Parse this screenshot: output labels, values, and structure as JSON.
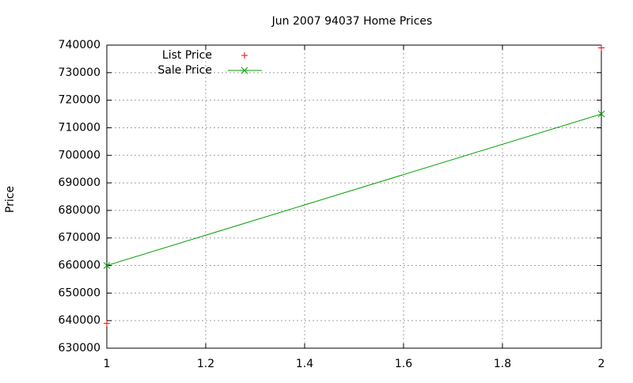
{
  "chart_data": {
    "type": "line",
    "title": "Jun 2007 94037 Home Prices",
    "y_label": "Price",
    "x": [
      1,
      2
    ],
    "series": [
      {
        "name": "List Price",
        "color": "#ff0000",
        "style": "points",
        "marker": "+",
        "values": [
          639000,
          739000
        ]
      },
      {
        "name": "Sale Price",
        "color": "#00a000",
        "style": "linespoints",
        "marker": "x",
        "values": [
          660000,
          715000
        ]
      }
    ],
    "xlim": [
      1,
      2
    ],
    "xticks": [
      1,
      1.2,
      1.4,
      1.6,
      1.8,
      2
    ],
    "ylim": [
      630000,
      740000
    ],
    "yticks": [
      630000,
      640000,
      650000,
      660000,
      670000,
      680000,
      690000,
      700000,
      710000,
      720000,
      730000,
      740000
    ],
    "grid": true,
    "legend": "top-left"
  }
}
